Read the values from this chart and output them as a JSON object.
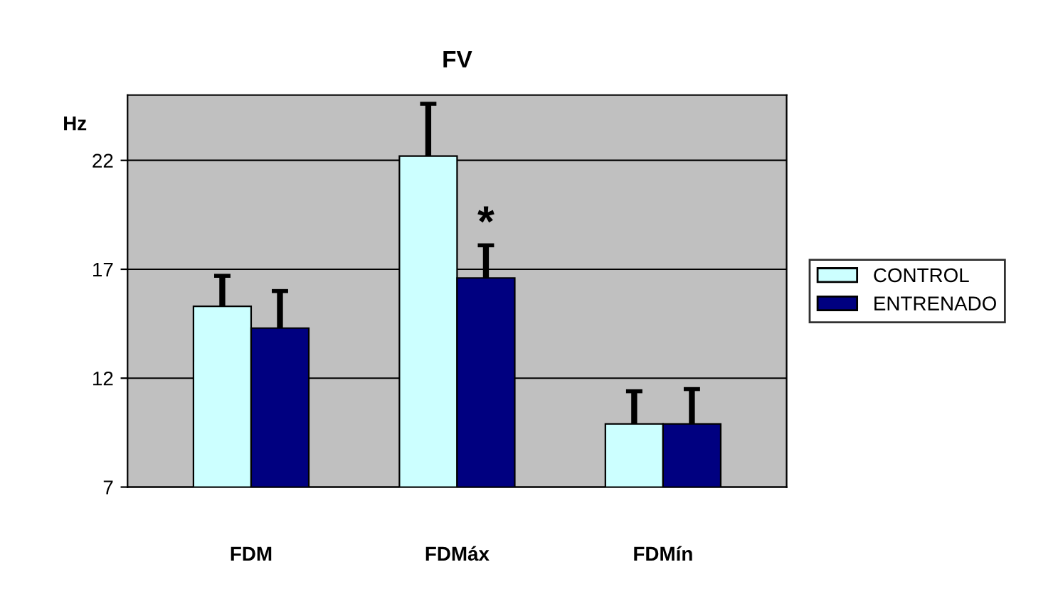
{
  "chart_data": {
    "type": "bar",
    "title": "FV",
    "ylabel": "Hz",
    "categories": [
      "FDM",
      "FDMáx",
      "FDMín"
    ],
    "series": [
      {
        "name": "CONTROL",
        "color": "#ccffff",
        "values": [
          15.3,
          22.2,
          9.9
        ],
        "errors": [
          [
            15.3,
            16.7
          ],
          [
            22.2,
            24.6
          ],
          [
            9.9,
            11.4
          ]
        ]
      },
      {
        "name": "ENTRENADO",
        "color": "#000080",
        "values": [
          14.3,
          16.6,
          9.9
        ],
        "errors": [
          [
            14.3,
            16.0
          ],
          [
            16.6,
            18.1
          ],
          [
            9.9,
            11.5
          ]
        ]
      }
    ],
    "annotations": [
      {
        "text": "*",
        "x": "FDMáx",
        "y": 18.1
      }
    ],
    "ylim": [
      7,
      25
    ],
    "yticks": [
      7,
      12,
      17,
      22
    ],
    "grid": "y",
    "legend": "right"
  }
}
